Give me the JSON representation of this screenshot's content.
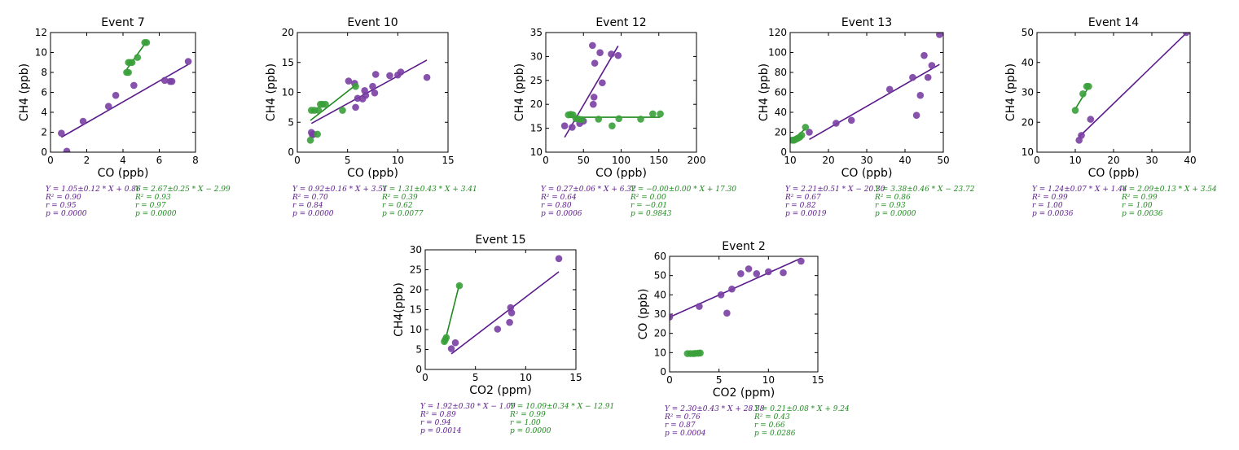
{
  "colors": {
    "series_a": "#5b1a8b",
    "series_a_point": "#7a3fa3",
    "series_b": "#1f8a1f",
    "series_b_point": "#3aa03a"
  },
  "chart_data": [
    {
      "type": "scatter",
      "title": "Event 7",
      "xlabel": "CO (ppb)",
      "ylabel": "CH4 (ppb)",
      "xlim": [
        0,
        8
      ],
      "ylim": [
        0,
        12
      ],
      "xticks": [
        "0",
        "2",
        "4",
        "6",
        "8"
      ],
      "yticks": [
        "0",
        "2",
        "4",
        "6",
        "8",
        "10",
        "12"
      ],
      "series": [
        {
          "color_key": "a",
          "points": [
            [
              0.6,
              1.9
            ],
            [
              0.9,
              0.1
            ],
            [
              1.8,
              3.1
            ],
            [
              3.2,
              4.6
            ],
            [
              3.6,
              5.7
            ],
            [
              4.6,
              6.7
            ],
            [
              6.3,
              7.2
            ],
            [
              6.6,
              7.1
            ],
            [
              6.7,
              7.1
            ],
            [
              7.6,
              9.1
            ]
          ],
          "fit": [
            [
              0.6,
              1.5
            ],
            [
              7.6,
              8.8
            ]
          ],
          "stats": [
            "Y = 1.05±0.12 * X + 0.86",
            "R² = 0.90",
            "r = 0.95",
            "p = 0.0000"
          ]
        },
        {
          "color_key": "b",
          "points": [
            [
              4.2,
              8.0
            ],
            [
              4.3,
              8.0
            ],
            [
              4.3,
              9.0
            ],
            [
              4.4,
              9.0
            ],
            [
              4.5,
              9.0
            ],
            [
              4.8,
              9.5
            ],
            [
              5.2,
              11.0
            ],
            [
              5.3,
              11.0
            ]
          ],
          "fit": [
            [
              4.2,
              8.3
            ],
            [
              5.3,
              11.1
            ]
          ],
          "stats": [
            "Y = 2.67±0.25 * X − 2.99",
            "R² = 0.93",
            "r = 0.97",
            "p = 0.0000"
          ]
        }
      ]
    },
    {
      "type": "scatter",
      "title": "Event 10",
      "xlabel": "CO (ppb)",
      "ylabel": "CH4 (ppb)",
      "xlim": [
        0,
        15
      ],
      "ylim": [
        0,
        20
      ],
      "xticks": [
        "0",
        "5",
        "10",
        "15"
      ],
      "yticks": [
        "0",
        "5",
        "10",
        "15",
        "20"
      ],
      "series": [
        {
          "color_key": "a",
          "points": [
            [
              1.4,
              3.3
            ],
            [
              1.5,
              2.9
            ],
            [
              1.6,
              3.0
            ],
            [
              5.1,
              11.9
            ],
            [
              5.7,
              11.5
            ],
            [
              5.8,
              7.5
            ],
            [
              6.0,
              9.0
            ],
            [
              6.5,
              8.9
            ],
            [
              6.7,
              10.3
            ],
            [
              6.8,
              9.5
            ],
            [
              7.5,
              11.0
            ],
            [
              7.7,
              9.9
            ],
            [
              7.8,
              13.0
            ],
            [
              9.2,
              12.8
            ],
            [
              10.0,
              12.9
            ],
            [
              10.3,
              13.4
            ],
            [
              12.9,
              12.5
            ]
          ],
          "fit": [
            [
              1.4,
              4.8
            ],
            [
              12.9,
              15.4
            ]
          ],
          "stats": [
            "Y = 0.92±0.16 * X + 3.51",
            "R² = 0.70",
            "r = 0.84",
            "p = 0.0000"
          ]
        },
        {
          "color_key": "b",
          "points": [
            [
              1.3,
              2.0
            ],
            [
              1.4,
              7.0
            ],
            [
              1.7,
              7.0
            ],
            [
              2.0,
              3.0
            ],
            [
              2.1,
              7.0
            ],
            [
              2.3,
              8.0
            ],
            [
              2.5,
              8.0
            ],
            [
              2.8,
              8.0
            ],
            [
              4.5,
              7.0
            ],
            [
              5.8,
              11.0
            ]
          ],
          "fit": [
            [
              1.3,
              5.3
            ],
            [
              5.8,
              11.2
            ]
          ],
          "stats": [
            "Y = 1.31±0.43 * X + 3.41",
            "R² = 0.39",
            "r = 0.62",
            "p = 0.0077"
          ]
        }
      ]
    },
    {
      "type": "scatter",
      "title": "Event 12",
      "xlabel": "CO (ppb)",
      "ylabel": "CH4 (ppb)",
      "xlim": [
        0,
        200
      ],
      "ylim": [
        10,
        35
      ],
      "xticks": [
        "0",
        "50",
        "100",
        "150",
        "200"
      ],
      "yticks": [
        "10",
        "15",
        "20",
        "25",
        "30",
        "35"
      ],
      "series": [
        {
          "color_key": "a",
          "points": [
            [
              25,
              15.5
            ],
            [
              35,
              15.2
            ],
            [
              45,
              16.0
            ],
            [
              50,
              16.5
            ],
            [
              62,
              32.3
            ],
            [
              63,
              20.0
            ],
            [
              64,
              21.5
            ],
            [
              65,
              28.6
            ],
            [
              72,
              30.8
            ],
            [
              75,
              24.5
            ],
            [
              87,
              30.5
            ],
            [
              96,
              30.2
            ]
          ],
          "fit": [
            [
              25,
              13.1
            ],
            [
              96,
              32.2
            ]
          ],
          "stats": [
            "Y = 0.27±0.06 * X + 6.32",
            "R² = 0.64",
            "r = 0.80",
            "p = 0.0006"
          ]
        },
        {
          "color_key": "b",
          "points": [
            [
              30,
              17.8
            ],
            [
              33,
              17.9
            ],
            [
              36,
              17.8
            ],
            [
              40,
              17.0
            ],
            [
              44,
              16.9
            ],
            [
              48,
              16.8
            ],
            [
              70,
              16.9
            ],
            [
              88,
              15.5
            ],
            [
              97,
              17.0
            ],
            [
              126,
              16.9
            ],
            [
              142,
              18.0
            ],
            [
              152,
              18.0
            ]
          ],
          "fit": [
            [
              30,
              17.3
            ],
            [
              152,
              17.3
            ]
          ],
          "stats": [
            "Y = −0.00±0.00 * X + 17.30",
            "R² = 0.00",
            "r = −0.01",
            "p = 0.9843"
          ]
        }
      ]
    },
    {
      "type": "scatter",
      "title": "Event 13",
      "xlabel": "CO (ppb)",
      "ylabel": "CH4 (ppb)",
      "xlim": [
        10,
        50
      ],
      "ylim": [
        0,
        120
      ],
      "xticks": [
        "10",
        "20",
        "30",
        "40",
        "50"
      ],
      "yticks": [
        "0",
        "20",
        "40",
        "60",
        "80",
        "100",
        "120"
      ],
      "series": [
        {
          "color_key": "a",
          "points": [
            [
              15,
              20
            ],
            [
              22,
              29
            ],
            [
              26,
              32
            ],
            [
              36,
              63
            ],
            [
              42,
              75
            ],
            [
              43,
              37
            ],
            [
              44,
              57
            ],
            [
              45,
              97
            ],
            [
              46,
              75
            ],
            [
              47,
              87
            ],
            [
              49,
              118
            ]
          ],
          "fit": [
            [
              15,
              12.8
            ],
            [
              49,
              88.0
            ]
          ],
          "stats": [
            "Y = 2.21±0.51 * X − 20.30",
            "R² = 0.67",
            "r = 0.82",
            "p = 0.0019"
          ]
        },
        {
          "color_key": "b",
          "points": [
            [
              10.5,
              12
            ],
            [
              11,
              12
            ],
            [
              11.5,
              13
            ],
            [
              12,
              14
            ],
            [
              12.5,
              15
            ],
            [
              13,
              17
            ],
            [
              14,
              25
            ]
          ],
          "fit": [
            [
              10.5,
              11.8
            ],
            [
              14,
              23.6
            ]
          ],
          "stats": [
            "Y = 3.38±0.46 * X − 23.72",
            "R² = 0.86",
            "r = 0.93",
            "p = 0.0000"
          ]
        }
      ]
    },
    {
      "type": "scatter",
      "title": "Event 14",
      "xlabel": "CO (ppb)",
      "ylabel": "CH4 (ppb)",
      "xlim": [
        0,
        40
      ],
      "ylim": [
        10,
        50
      ],
      "xticks": [
        "0",
        "10",
        "20",
        "30",
        "40"
      ],
      "yticks": [
        "10",
        "20",
        "30",
        "40",
        "50"
      ],
      "series": [
        {
          "color_key": "a",
          "points": [
            [
              11,
              14
            ],
            [
              11.6,
              15.6
            ],
            [
              14,
              21
            ],
            [
              39,
              50
            ]
          ],
          "fit": [
            [
              11,
              15.1
            ],
            [
              39,
              49.8
            ]
          ],
          "stats": [
            "Y = 1.24±0.07 * X + 1.44",
            "R² = 0.99",
            "r = 1.00",
            "p = 0.0036"
          ]
        },
        {
          "color_key": "b",
          "points": [
            [
              10,
              24
            ],
            [
              12,
              29.5
            ],
            [
              13,
              32
            ],
            [
              13.5,
              32
            ]
          ],
          "fit": [
            [
              10,
              24.4
            ],
            [
              13.5,
              31.8
            ]
          ],
          "stats": [
            "Y = 2.09±0.13 * X + 3.54",
            "R² = 0.99",
            "r = 1.00",
            "p = 0.0036"
          ]
        }
      ]
    },
    {
      "type": "scatter",
      "title": "Event 15",
      "xlabel": "CO2 (ppm)",
      "ylabel": "CH4(ppb)",
      "xlim": [
        0,
        15
      ],
      "ylim": [
        0,
        30
      ],
      "xticks": [
        "0",
        "5",
        "10",
        "15"
      ],
      "yticks": [
        "0",
        "5",
        "10",
        "15",
        "20",
        "25",
        "30"
      ],
      "series": [
        {
          "color_key": "a",
          "points": [
            [
              2.6,
              5.2
            ],
            [
              3.0,
              6.7
            ],
            [
              7.2,
              10.1
            ],
            [
              8.4,
              11.8
            ],
            [
              8.5,
              15.5
            ],
            [
              8.6,
              14.2
            ],
            [
              13.3,
              27.8
            ]
          ],
          "fit": [
            [
              2.6,
              3.9
            ],
            [
              13.3,
              24.5
            ]
          ],
          "stats": [
            "Y = 1.92±0.30 * X − 1.09",
            "R² = 0.89",
            "r = 0.94",
            "p = 0.0014"
          ]
        },
        {
          "color_key": "b",
          "points": [
            [
              1.9,
              7.0
            ],
            [
              2.0,
              7.5
            ],
            [
              2.1,
              8.0
            ],
            [
              3.4,
              21.0
            ]
          ],
          "fit": [
            [
              1.9,
              6.3
            ],
            [
              3.4,
              21.4
            ]
          ],
          "stats": [
            "Y = 10.09±0.34 * X − 12.91",
            "R² = 0.99",
            "r = 1.00",
            "p = 0.0000"
          ]
        }
      ]
    },
    {
      "type": "scatter",
      "title": "Event 2",
      "xlabel": "CO2 (ppm)",
      "ylabel": "CO (ppb)",
      "xlim": [
        0,
        15
      ],
      "ylim": [
        0,
        60
      ],
      "xticks": [
        "0",
        "5",
        "10",
        "15"
      ],
      "yticks": [
        "0",
        "10",
        "20",
        "30",
        "40",
        "50",
        "60"
      ],
      "series": [
        {
          "color_key": "a",
          "points": [
            [
              0.0,
              28.5
            ],
            [
              3.0,
              34.0
            ],
            [
              5.2,
              40.0
            ],
            [
              5.8,
              30.5
            ],
            [
              6.3,
              43.0
            ],
            [
              7.2,
              51.0
            ],
            [
              8.0,
              53.5
            ],
            [
              8.8,
              51.0
            ],
            [
              10.0,
              52.0
            ],
            [
              11.5,
              51.5
            ],
            [
              13.3,
              57.5
            ]
          ],
          "fit": [
            [
              0.0,
              28.4
            ],
            [
              13.3,
              59.0
            ]
          ],
          "stats": [
            "Y = 2.30±0.43 * X + 28.38",
            "R² = 0.76",
            "r = 0.87",
            "p = 0.0004"
          ]
        },
        {
          "color_key": "b",
          "points": [
            [
              1.8,
              9.5
            ],
            [
              2.1,
              9.5
            ],
            [
              2.4,
              9.5
            ],
            [
              2.6,
              9.6
            ],
            [
              2.9,
              9.7
            ],
            [
              3.1,
              9.8
            ]
          ],
          "fit": [
            [
              1.8,
              9.6
            ],
            [
              3.1,
              9.9
            ]
          ],
          "stats": [
            "Y = 0.21±0.08 * X + 9.24",
            "R² = 0.43",
            "r = 0.66",
            "p = 0.0286"
          ]
        }
      ]
    }
  ]
}
